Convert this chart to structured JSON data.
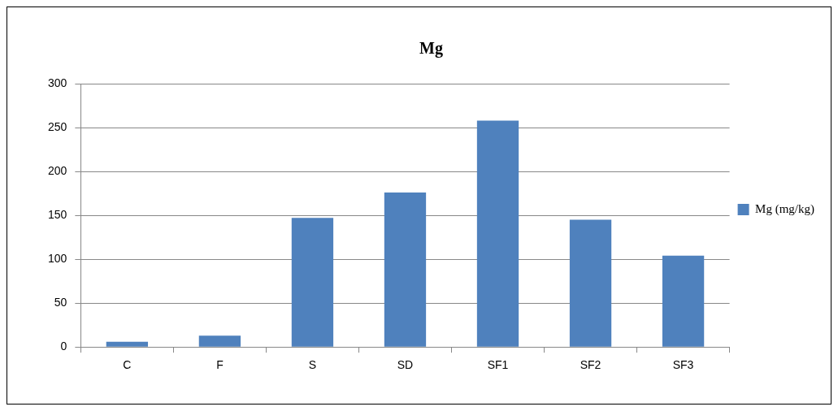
{
  "chart_data": {
    "type": "bar",
    "title": "Mg",
    "categories": [
      "C",
      "F",
      "S",
      "SD",
      "SF1",
      "SF2",
      "SF3"
    ],
    "series": [
      {
        "name": "Mg (mg/kg)",
        "color": "#4f81bd",
        "values": [
          6,
          13,
          147,
          176,
          258,
          145,
          104
        ]
      }
    ],
    "ylim": [
      0,
      300
    ],
    "yticks": [
      0,
      50,
      100,
      150,
      200,
      250,
      300
    ],
    "grid": "y",
    "legend": "right"
  }
}
